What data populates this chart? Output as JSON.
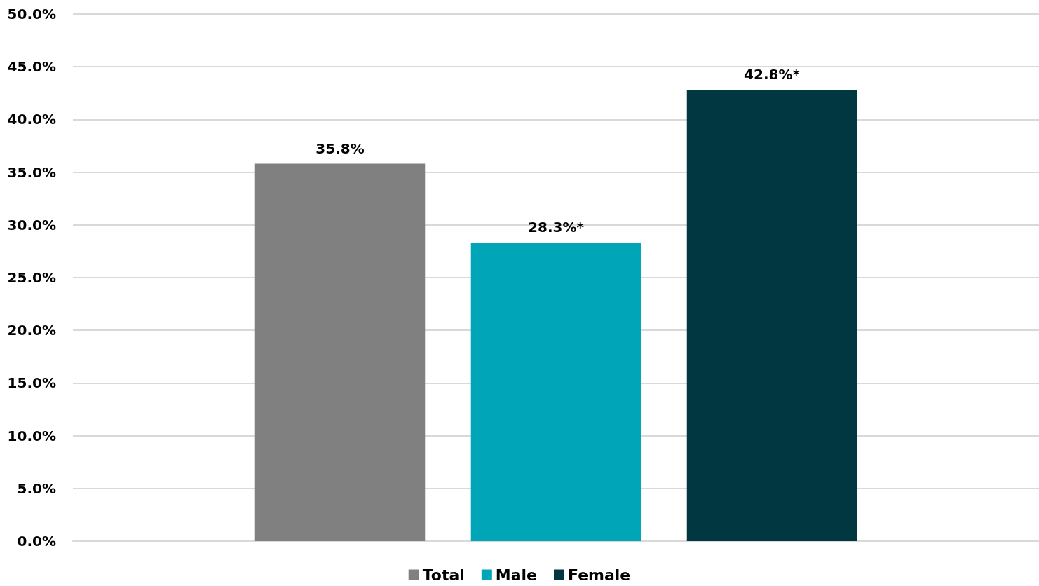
{
  "chart_data": {
    "type": "bar",
    "categories": [
      null
    ],
    "series": [
      {
        "name": "Total",
        "color": "#808080",
        "values": [
          35.8
        ],
        "value_labels": [
          "35.8%"
        ]
      },
      {
        "name": "Male",
        "color": "#00a5b8",
        "values": [
          28.3
        ],
        "value_labels": [
          "28.3%*"
        ]
      },
      {
        "name": "Female",
        "color": "#003741",
        "values": [
          42.8
        ],
        "value_labels": [
          "42.8%*"
        ]
      }
    ],
    "ylim": [
      0,
      50
    ],
    "yticks": [
      {
        "value": 0,
        "label": "0.0%"
      },
      {
        "value": 5,
        "label": "5.0%"
      },
      {
        "value": 10,
        "label": "10.0%"
      },
      {
        "value": 15,
        "label": "15.0%"
      },
      {
        "value": 20,
        "label": "20.0%"
      },
      {
        "value": 25,
        "label": "25.0%"
      },
      {
        "value": 30,
        "label": "30.0%"
      },
      {
        "value": 35,
        "label": "35.0%"
      },
      {
        "value": 40,
        "label": "40.0%"
      },
      {
        "value": 45,
        "label": "45.0%"
      },
      {
        "value": 50,
        "label": "50.0%"
      }
    ],
    "grid": "y",
    "legend": "bottom"
  }
}
